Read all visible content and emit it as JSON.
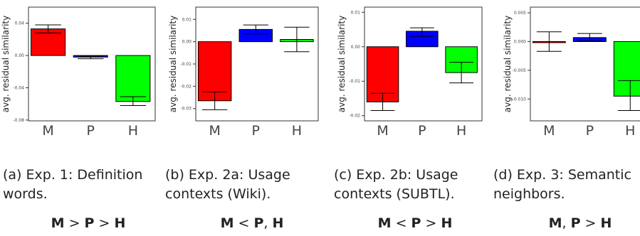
{
  "chart_data": [
    {
      "type": "bar",
      "categories": [
        "M",
        "P",
        "H"
      ],
      "values": [
        0.033,
        -0.002,
        -0.057
      ],
      "err_low": [
        0.028,
        -0.004,
        -0.062
      ],
      "err_high": [
        0.038,
        -0.001,
        -0.051
      ],
      "colors": [
        "#ff0000",
        "#0000ff",
        "#00ff00"
      ],
      "ylabel": "avg. residual similarity",
      "ylim": [
        -0.081,
        0.06
      ],
      "yticks": [
        -0.08,
        -0.04,
        0.0,
        0.04
      ],
      "ytick_labels": [
        "-0.08",
        "-0.04",
        "0.00",
        "0.04"
      ],
      "caption": [
        "(a) Exp. 1: Definition",
        "words."
      ],
      "relation": [
        {
          "t": "M",
          "b": true
        },
        {
          "t": " > ",
          "b": false
        },
        {
          "t": "P",
          "b": true
        },
        {
          "t": " > ",
          "b": false
        },
        {
          "t": "H",
          "b": true
        }
      ]
    },
    {
      "type": "bar",
      "categories": [
        "M",
        "P",
        "H"
      ],
      "values": [
        -0.0265,
        0.0055,
        0.001
      ],
      "err_low": [
        -0.0305,
        0.0035,
        -0.0045
      ],
      "err_high": [
        -0.0225,
        0.0075,
        0.0065
      ],
      "colors": [
        "#ff0000",
        "#0000ff",
        "#00ff00"
      ],
      "ylabel": "avg. residual similarity",
      "ylim": [
        -0.0355,
        0.0155
      ],
      "yticks": [
        -0.03,
        -0.02,
        -0.01,
        0.0,
        0.01
      ],
      "ytick_labels": [
        "-0.03",
        "-0.02",
        "-0.01",
        "0.00",
        "0.01"
      ],
      "caption": [
        "(b) Exp. 2a: Usage",
        "contexts (Wiki)."
      ],
      "relation": [
        {
          "t": "M",
          "b": true
        },
        {
          "t": " < ",
          "b": false
        },
        {
          "t": "P",
          "b": true
        },
        {
          "t": ", ",
          "b": false
        },
        {
          "t": "H",
          "b": true
        }
      ]
    },
    {
      "type": "bar",
      "categories": [
        "M",
        "P",
        "H"
      ],
      "values": [
        -0.016,
        0.0045,
        -0.0075
      ],
      "err_low": [
        -0.0185,
        0.003,
        -0.0105
      ],
      "err_high": [
        -0.0135,
        0.0055,
        -0.0045
      ],
      "colors": [
        "#ff0000",
        "#0000ff",
        "#00ff00"
      ],
      "ylabel": "avg. residual similarity",
      "ylim": [
        -0.0215,
        0.0115
      ],
      "yticks": [
        -0.02,
        -0.01,
        0.0,
        0.01
      ],
      "ytick_labels": [
        "-0.02",
        "-0.01",
        "0.00",
        "0.01"
      ],
      "caption": [
        "(c) Exp. 2b: Usage",
        "contexts (SUBTL)."
      ],
      "relation": [
        {
          "t": "M",
          "b": true
        },
        {
          "t": " < ",
          "b": false
        },
        {
          "t": "P",
          "b": true
        },
        {
          "t": " > ",
          "b": false
        },
        {
          "t": "H",
          "b": true
        }
      ]
    },
    {
      "type": "bar",
      "categories": [
        "M",
        "P",
        "H"
      ],
      "values": [
        0.0,
        0.0007,
        -0.0095
      ],
      "err_low": [
        -0.0017,
        0.0001,
        -0.012
      ],
      "err_high": [
        0.0017,
        0.0014,
        -0.0068
      ],
      "colors": [
        "#ff0000",
        "#0000ff",
        "#00ff00"
      ],
      "ylabel": "avg. residual similarity",
      "ylim": [
        -0.0138,
        0.006
      ],
      "yticks": [
        -0.01,
        -0.005,
        0.0,
        0.005
      ],
      "ytick_labels": [
        "-0.010",
        "-0.005",
        "0.000",
        "0.005"
      ],
      "caption": [
        "(d) Exp. 3: Semantic",
        "neighbors."
      ],
      "relation": [
        {
          "t": "M",
          "b": true
        },
        {
          "t": ", ",
          "b": false
        },
        {
          "t": "P",
          "b": true
        },
        {
          "t": " > ",
          "b": false
        },
        {
          "t": "H",
          "b": true
        }
      ]
    }
  ]
}
